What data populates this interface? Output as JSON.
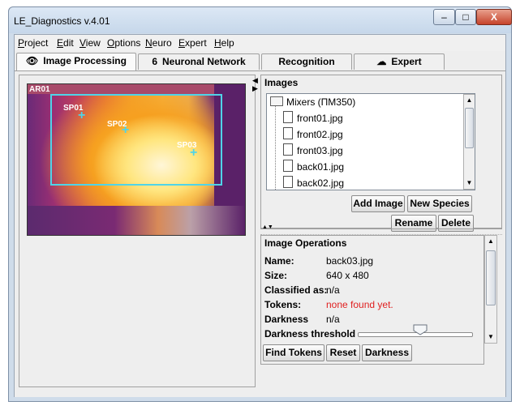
{
  "window": {
    "title": "LE_Diagnostics v.4.01",
    "min": "–",
    "max": "□",
    "close": "X"
  },
  "menu": [
    {
      "first": "P",
      "rest": "roject"
    },
    {
      "first": "E",
      "rest": "dit"
    },
    {
      "first": "V",
      "rest": "iew"
    },
    {
      "first": "O",
      "rest": "ptions"
    },
    {
      "first": "N",
      "rest": "euro"
    },
    {
      "first": "E",
      "rest": "xpert"
    },
    {
      "first": "H",
      "rest": "elp"
    }
  ],
  "tabs": [
    {
      "label": "Image Processing",
      "icon": "eye-icon",
      "glyph": "👁",
      "active": true
    },
    {
      "label": "Neuronal Network",
      "icon": "network-icon",
      "glyph": "6",
      "active": false
    },
    {
      "label": "Recognition",
      "icon": "",
      "glyph": "",
      "active": false
    },
    {
      "label": "Expert",
      "icon": "brain-icon",
      "glyph": "☁",
      "active": false
    }
  ],
  "thermal": {
    "area_label": "AR01",
    "spots": [
      "SP01",
      "SP02",
      "SP03"
    ]
  },
  "images": {
    "title": "Images",
    "root": "Mixers (ПМ350)",
    "files": [
      "front01.jpg",
      "front02.jpg",
      "front03.jpg",
      "back01.jpg",
      "back02.jpg"
    ],
    "buttons": {
      "add_image": "Add Image",
      "new_species": "New Species",
      "rename": "Rename",
      "delete": "Delete"
    }
  },
  "operations": {
    "title": "Image Operations",
    "name_label": "Name:",
    "name_value": "back03.jpg",
    "size_label": "Size:",
    "size_value": "640 x 480",
    "classified_label": "Classified as:",
    "classified_value": "n/a",
    "tokens_label": "Tokens:",
    "tokens_value": "none found yet.",
    "darkness_label": "Darkness",
    "darkness_value": "n/a",
    "threshold_label": "Darkness threshold",
    "threshold_level": 0.55,
    "buttons": {
      "find_tokens": "Find Tokens",
      "reset": "Reset",
      "darkness": "Darkness"
    }
  },
  "colors": {
    "roi": "#4fd4e8",
    "error": "#e02020"
  }
}
